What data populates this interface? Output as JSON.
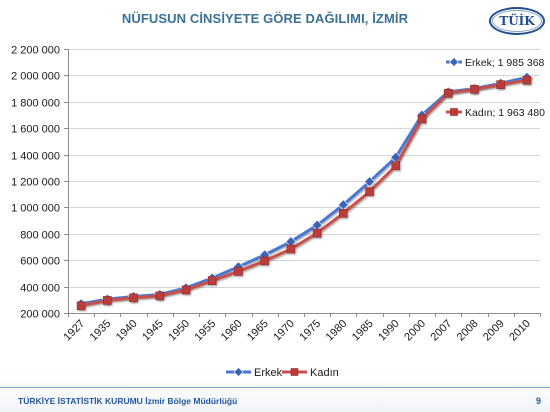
{
  "chart_data": {
    "type": "line",
    "title": "NÜFUSUN CİNSİYETE GÖRE DAĞILIMI, İZMİR",
    "categories": [
      "1927",
      "1935",
      "1940",
      "1945",
      "1950",
      "1955",
      "1960",
      "1965",
      "1970",
      "1975",
      "1980",
      "1985",
      "1990",
      "2000",
      "2007",
      "2008",
      "2009",
      "2010"
    ],
    "series": [
      {
        "name": "Erkek",
        "values": [
          270000,
          305000,
          325000,
          340000,
          390000,
          465000,
          550000,
          640000,
          740000,
          865000,
          1020000,
          1195000,
          1380000,
          1700000,
          1875000,
          1900000,
          1940000,
          1985368
        ],
        "data_label": "Erkek; 1 985 368",
        "color": "#4a78cf",
        "marker": "diamond",
        "marker_color": "#3c64b4"
      },
      {
        "name": "Kadın",
        "values": [
          255000,
          295000,
          315000,
          330000,
          375000,
          445000,
          515000,
          595000,
          685000,
          805000,
          955000,
          1120000,
          1315000,
          1670000,
          1865000,
          1895000,
          1930000,
          1963480
        ],
        "data_label": "Kadın; 1 963 480",
        "color": "#c9504c",
        "marker": "square",
        "marker_color": "#b83c3a"
      }
    ],
    "ylim": [
      200000,
      2200000
    ],
    "y_ticks": [
      200000,
      400000,
      600000,
      800000,
      1000000,
      1200000,
      1400000,
      1600000,
      1800000,
      2000000,
      2200000
    ],
    "y_tick_labels": [
      "200 000",
      "400 000",
      "600 000",
      "800 000",
      "1 000 000",
      "1 200 000",
      "1 400 000",
      "1 600 000",
      "1 800 000",
      "2 000 000",
      "2 200 000"
    ],
    "grid": true,
    "legend_position": "bottom"
  },
  "logo": {
    "text": "TÜİK"
  },
  "footer": {
    "org": "TÜRKİYE İSTATİSTİK KURUMU",
    "unit": "İzmir Bölge Müdürlüğü",
    "page_number": "9"
  },
  "colors": {
    "title": "#3a7194",
    "logo": "#1f4f91",
    "footer_text": "#2457a0",
    "footer_rule": "#7aaccb",
    "grid": "#d6d6d6",
    "axis": "#8c8c8c"
  }
}
